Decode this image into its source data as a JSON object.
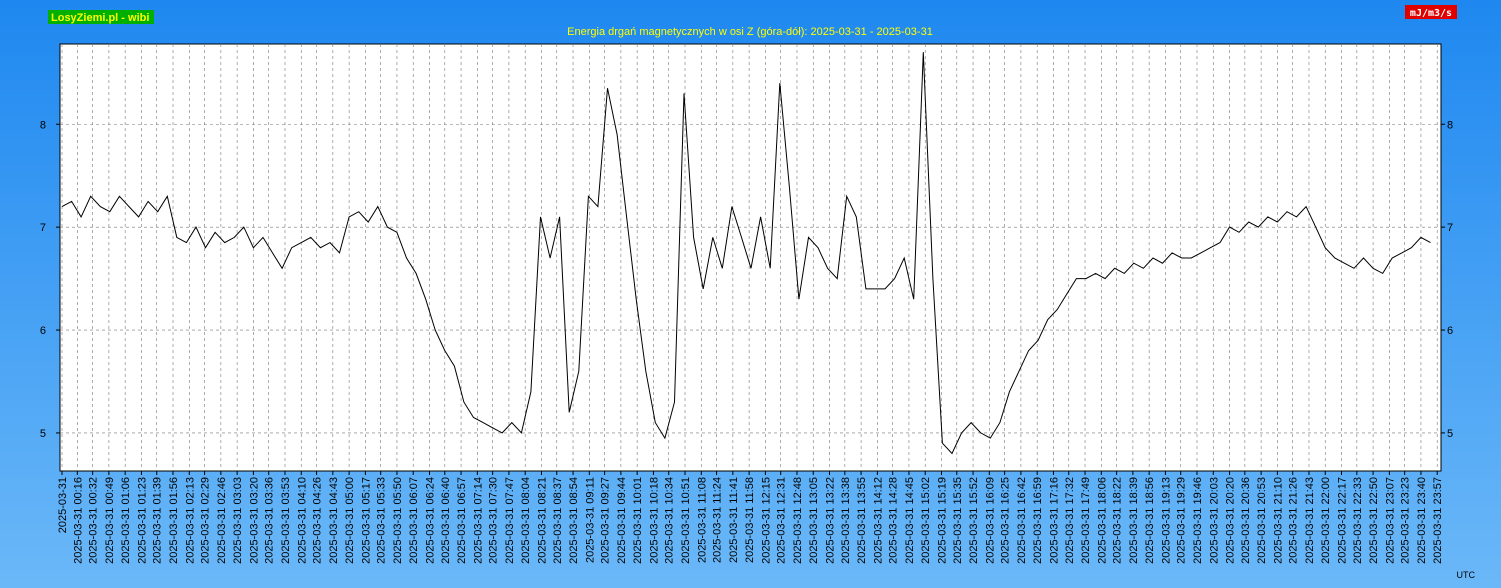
{
  "chart_data": {
    "type": "line",
    "title": "Energia drgań magnetycznych w osi Z (góra-dół): 2025-03-31 - 2025-03-31",
    "source": "LosyZiemi.pl - wibi",
    "ylabel": "mJ/m3/s",
    "xlabel": "UTC",
    "color": "#000000",
    "grid": true,
    "ylim": [
      4.63,
      8.78
    ],
    "yticks": [
      5,
      6,
      7,
      8
    ],
    "xticks": [
      "2025-03-31",
      "2025-03-31 00:16",
      "2025-03-31 00:32",
      "2025-03-31 00:49",
      "2025-03-31 01:06",
      "2025-03-31 01:23",
      "2025-03-31 01:39",
      "2025-03-31 01:56",
      "2025-03-31 02:13",
      "2025-03-31 02:29",
      "2025-03-31 02:46",
      "2025-03-31 03:03",
      "2025-03-31 03:20",
      "2025-03-31 03:36",
      "2025-03-31 03:53",
      "2025-03-31 04:10",
      "2025-03-31 04:26",
      "2025-03-31 04:43",
      "2025-03-31 05:00",
      "2025-03-31 05:17",
      "2025-03-31 05:33",
      "2025-03-31 05:50",
      "2025-03-31 06:07",
      "2025-03-31 06:24",
      "2025-03-31 06:40",
      "2025-03-31 06:57",
      "2025-03-31 07:14",
      "2025-03-31 07:30",
      "2025-03-31 07:47",
      "2025-03-31 08:04",
      "2025-03-31 08:21",
      "2025-03-31 08:37",
      "2025-03-31 08:54",
      "2025-03-31 09:11",
      "2025-03-31 09:27",
      "2025-03-31 09:44",
      "2025-03-31 10:01",
      "2025-03-31 10:18",
      "2025-03-31 10:34",
      "2025-03-31 10:51",
      "2025-03-31 11:08",
      "2025-03-31 11:24",
      "2025-03-31 11:41",
      "2025-03-31 11:58",
      "2025-03-31 12:15",
      "2025-03-31 12:31",
      "2025-03-31 12:48",
      "2025-03-31 13:05",
      "2025-03-31 13:22",
      "2025-03-31 13:38",
      "2025-03-31 13:55",
      "2025-03-31 14:12",
      "2025-03-31 14:28",
      "2025-03-31 14:45",
      "2025-03-31 15:02",
      "2025-03-31 15:19",
      "2025-03-31 15:35",
      "2025-03-31 15:52",
      "2025-03-31 16:09",
      "2025-03-31 16:25",
      "2025-03-31 16:42",
      "2025-03-31 16:59",
      "2025-03-31 17:16",
      "2025-03-31 17:32",
      "2025-03-31 17:49",
      "2025-03-31 18:06",
      "2025-03-31 18:22",
      "2025-03-31 18:39",
      "2025-03-31 18:56",
      "2025-03-31 19:13",
      "2025-03-31 19:29",
      "2025-03-31 19:46",
      "2025-03-31 20:03",
      "2025-03-31 20:20",
      "2025-03-31 20:36",
      "2025-03-31 20:53",
      "2025-03-31 21:10",
      "2025-03-31 21:26",
      "2025-03-31 21:43",
      "2025-03-31 22:00",
      "2025-03-31 22:17",
      "2025-03-31 22:33",
      "2025-03-31 22:50",
      "2025-03-31 23:07",
      "2025-03-31 23:23",
      "2025-03-31 23:40",
      "2025-03-31 23:57"
    ],
    "x": [
      "2025-03-31 00:00",
      "2025-03-31 00:10",
      "2025-03-31 00:20",
      "2025-03-31 00:30",
      "2025-03-31 00:40",
      "2025-03-31 00:50",
      "2025-03-31 01:00",
      "2025-03-31 01:10",
      "2025-03-31 01:20",
      "2025-03-31 01:30",
      "2025-03-31 01:40",
      "2025-03-31 01:50",
      "2025-03-31 02:00",
      "2025-03-31 02:10",
      "2025-03-31 02:20",
      "2025-03-31 02:30",
      "2025-03-31 02:40",
      "2025-03-31 02:50",
      "2025-03-31 03:00",
      "2025-03-31 03:10",
      "2025-03-31 03:20",
      "2025-03-31 03:30",
      "2025-03-31 03:40",
      "2025-03-31 03:50",
      "2025-03-31 04:00",
      "2025-03-31 04:10",
      "2025-03-31 04:20",
      "2025-03-31 04:30",
      "2025-03-31 04:40",
      "2025-03-31 04:50",
      "2025-03-31 05:00",
      "2025-03-31 05:10",
      "2025-03-31 05:20",
      "2025-03-31 05:30",
      "2025-03-31 05:40",
      "2025-03-31 05:50",
      "2025-03-31 06:00",
      "2025-03-31 06:10",
      "2025-03-31 06:20",
      "2025-03-31 06:30",
      "2025-03-31 06:40",
      "2025-03-31 06:50",
      "2025-03-31 07:00",
      "2025-03-31 07:10",
      "2025-03-31 07:20",
      "2025-03-31 07:30",
      "2025-03-31 07:40",
      "2025-03-31 07:50",
      "2025-03-31 08:00",
      "2025-03-31 08:10",
      "2025-03-31 08:20",
      "2025-03-31 08:30",
      "2025-03-31 08:40",
      "2025-03-31 08:50",
      "2025-03-31 09:00",
      "2025-03-31 09:10",
      "2025-03-31 09:20",
      "2025-03-31 09:30",
      "2025-03-31 09:40",
      "2025-03-31 09:50",
      "2025-03-31 10:00",
      "2025-03-31 10:10",
      "2025-03-31 10:20",
      "2025-03-31 10:30",
      "2025-03-31 10:40",
      "2025-03-31 10:50",
      "2025-03-31 11:00",
      "2025-03-31 11:10",
      "2025-03-31 11:20",
      "2025-03-31 11:30",
      "2025-03-31 11:40",
      "2025-03-31 11:50",
      "2025-03-31 12:00",
      "2025-03-31 12:10",
      "2025-03-31 12:20",
      "2025-03-31 12:30",
      "2025-03-31 12:40",
      "2025-03-31 12:50",
      "2025-03-31 13:00",
      "2025-03-31 13:10",
      "2025-03-31 13:20",
      "2025-03-31 13:30",
      "2025-03-31 13:40",
      "2025-03-31 13:50",
      "2025-03-31 14:00",
      "2025-03-31 14:10",
      "2025-03-31 14:20",
      "2025-03-31 14:30",
      "2025-03-31 14:40",
      "2025-03-31 14:50",
      "2025-03-31 15:00",
      "2025-03-31 15:10",
      "2025-03-31 15:20",
      "2025-03-31 15:30",
      "2025-03-31 15:40",
      "2025-03-31 15:50",
      "2025-03-31 16:00",
      "2025-03-31 16:10",
      "2025-03-31 16:20",
      "2025-03-31 16:30",
      "2025-03-31 16:40",
      "2025-03-31 16:50",
      "2025-03-31 17:00",
      "2025-03-31 17:10",
      "2025-03-31 17:20",
      "2025-03-31 17:30",
      "2025-03-31 17:40",
      "2025-03-31 17:50",
      "2025-03-31 18:00",
      "2025-03-31 18:10",
      "2025-03-31 18:20",
      "2025-03-31 18:30",
      "2025-03-31 18:40",
      "2025-03-31 18:50",
      "2025-03-31 19:00",
      "2025-03-31 19:10",
      "2025-03-31 19:20",
      "2025-03-31 19:30",
      "2025-03-31 19:40",
      "2025-03-31 19:50",
      "2025-03-31 20:00",
      "2025-03-31 20:10",
      "2025-03-31 20:20",
      "2025-03-31 20:30",
      "2025-03-31 20:40",
      "2025-03-31 20:50",
      "2025-03-31 21:00",
      "2025-03-31 21:10",
      "2025-03-31 21:20",
      "2025-03-31 21:30",
      "2025-03-31 21:40",
      "2025-03-31 21:50",
      "2025-03-31 22:00",
      "2025-03-31 22:10",
      "2025-03-31 22:20",
      "2025-03-31 22:30",
      "2025-03-31 22:40",
      "2025-03-31 22:50",
      "2025-03-31 23:00",
      "2025-03-31 23:10",
      "2025-03-31 23:20",
      "2025-03-31 23:30",
      "2025-03-31 23:40",
      "2025-03-31 23:50"
    ],
    "values": [
      7.2,
      7.25,
      7.1,
      7.3,
      7.2,
      7.15,
      7.3,
      7.2,
      7.1,
      7.25,
      7.15,
      7.3,
      6.9,
      6.85,
      7.0,
      6.8,
      6.95,
      6.85,
      6.9,
      7.0,
      6.8,
      6.9,
      6.75,
      6.6,
      6.8,
      6.85,
      6.9,
      6.8,
      6.85,
      6.75,
      7.1,
      7.15,
      7.05,
      7.2,
      7.0,
      6.95,
      6.7,
      6.55,
      6.3,
      6.0,
      5.8,
      5.65,
      5.3,
      5.15,
      5.1,
      5.05,
      5.0,
      5.1,
      5.0,
      5.4,
      7.1,
      6.7,
      7.1,
      5.2,
      5.6,
      7.3,
      7.2,
      8.35,
      7.9,
      7.1,
      6.3,
      5.6,
      5.1,
      4.95,
      5.3,
      8.3,
      6.9,
      6.4,
      6.9,
      6.6,
      7.2,
      6.9,
      6.6,
      7.1,
      6.6,
      8.4,
      7.4,
      6.3,
      6.9,
      6.8,
      6.6,
      6.5,
      7.3,
      7.1,
      6.4,
      6.4,
      6.4,
      6.5,
      6.7,
      6.3,
      8.7,
      6.5,
      4.9,
      4.8,
      5.0,
      5.1,
      5.0,
      4.95,
      5.1,
      5.4,
      5.6,
      5.8,
      5.9,
      6.1,
      6.2,
      6.35,
      6.5,
      6.5,
      6.55,
      6.5,
      6.6,
      6.55,
      6.65,
      6.6,
      6.7,
      6.65,
      6.75,
      6.7,
      6.7,
      6.75,
      6.8,
      6.85,
      7.0,
      6.95,
      7.05,
      7.0,
      7.1,
      7.05,
      7.15,
      7.1,
      7.2,
      7.0,
      6.8,
      6.7,
      6.65,
      6.6,
      6.7,
      6.6,
      6.55,
      6.7,
      6.75,
      6.8,
      6.9,
      6.85
    ]
  }
}
